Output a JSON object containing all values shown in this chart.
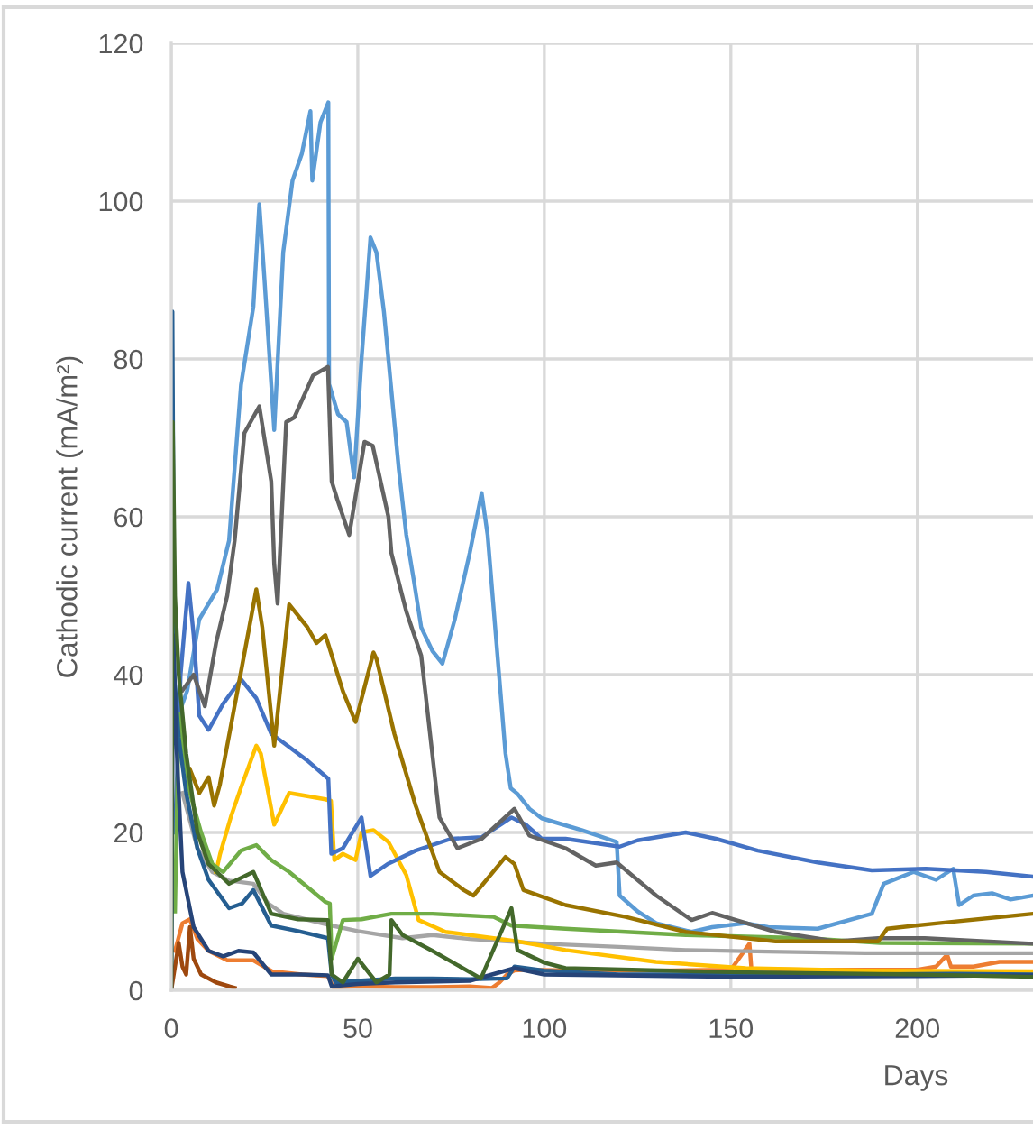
{
  "chart_data": {
    "type": "line",
    "xlabel": "Days",
    "ylabel": "Cathodic current (mA/m²)",
    "xlim": [
      0,
      231
    ],
    "ylim": [
      0,
      120
    ],
    "xticks": [
      0,
      50,
      100,
      150,
      200
    ],
    "yticks": [
      0,
      20,
      40,
      60,
      80,
      100,
      120
    ],
    "grid": true,
    "series": [
      {
        "color": "#5b9bd5",
        "x": [
          2,
          4.3,
          7.5,
          12.3,
          15.5,
          18.7,
          22,
          23.6,
          25,
          27.6,
          30,
          32.5,
          35,
          37.3,
          37.8,
          40,
          42.1,
          42.3,
          44.7,
          47,
          49,
          51,
          53.4,
          55,
          57,
          59,
          61,
          63,
          65,
          67,
          70,
          72.7,
          76,
          80,
          83.2,
          84.8,
          87,
          89.6,
          91,
          92.8,
          96,
          99.3,
          105,
          110,
          115,
          119.4,
          120.2,
          125,
          130,
          139.5,
          145,
          154,
          160,
          173.3,
          187.8,
          191,
          199,
          205,
          209.6,
          211.2,
          215,
          220,
          225,
          231
        ],
        "values": [
          35,
          38,
          47,
          50.8,
          57,
          76.7,
          86.6,
          99.6,
          90,
          71,
          93.5,
          102.6,
          106,
          111.4,
          102.6,
          110,
          112.5,
          76.8,
          73,
          72,
          65,
          80,
          95.4,
          93.5,
          86,
          76,
          66,
          57.7,
          52,
          46,
          43,
          41.4,
          47,
          55.4,
          63,
          57.7,
          45,
          30,
          25.6,
          24.9,
          23,
          21.8,
          21,
          20.3,
          19.5,
          18.8,
          12,
          10,
          8.5,
          7.4,
          8,
          8.5,
          8,
          7.8,
          9.7,
          13.5,
          15,
          14,
          15.4,
          10.8,
          12,
          12.3,
          11.5,
          12
        ]
      },
      {
        "color": "#ed7d31",
        "x": [
          1,
          3,
          5,
          7,
          10,
          15,
          22,
          27,
          35,
          42,
          43.5,
          50,
          60,
          70,
          80,
          86,
          88,
          90,
          92,
          95,
          110,
          130,
          150,
          155,
          155.5,
          156,
          170,
          190,
          200,
          205,
          208,
          209,
          215,
          222,
          231
        ],
        "values": [
          5,
          8.5,
          9,
          6.5,
          5,
          3.8,
          3.8,
          2.4,
          2,
          1.8,
          0.3,
          0.5,
          0.4,
          0.4,
          0.5,
          0.3,
          1,
          2,
          2.5,
          2.6,
          2.5,
          2.5,
          2.6,
          5.9,
          2.8,
          2.7,
          2.6,
          2.6,
          2.6,
          3,
          4.5,
          3,
          3,
          3.6,
          3.6
        ]
      },
      {
        "color": "#a5a5a5",
        "x": [
          3,
          7,
          11,
          15.5,
          22,
          26,
          30,
          36,
          43,
          50,
          62,
          70,
          80,
          90,
          100,
          120,
          137.9,
          160,
          186,
          210,
          231
        ],
        "values": [
          25,
          18,
          15,
          13.9,
          13.5,
          11,
          9.7,
          9,
          8.2,
          7.5,
          6.6,
          7,
          6.5,
          6.2,
          5.9,
          5.5,
          5.1,
          4.9,
          4.7,
          4.7,
          4.7
        ]
      },
      {
        "color": "#ffc000",
        "x": [
          12,
          13.1,
          16,
          18.7,
          22.8,
          24,
          27.6,
          31.6,
          36.5,
          41.3,
          42.8,
          43.7,
          46,
          49.4,
          51,
          54.2,
          58.2,
          63,
          66.3,
          73.5,
          86.4,
          92.8,
          105.7,
          129.9,
          154,
          186,
          231
        ],
        "values": [
          15,
          17.3,
          22,
          25.7,
          31,
          30,
          21,
          25,
          24.6,
          24.2,
          24,
          16.5,
          17.3,
          16.5,
          20,
          20.3,
          18.8,
          14.6,
          8.9,
          7.4,
          6.6,
          6.2,
          5.1,
          3.6,
          2.8,
          2.5,
          2.4
        ]
      },
      {
        "color": "#4472c4",
        "x": [
          1,
          2.5,
          4.6,
          6,
          7.5,
          10,
          13.9,
          18.7,
          22.8,
          26.8,
          30,
          36.5,
          42.1,
          42.9,
          46,
          51,
          53.4,
          58,
          65.5,
          75,
          83.2,
          91.2,
          95,
          99.3,
          105.7,
          120.2,
          125,
          137.9,
          146,
          157.2,
          173.3,
          187.8,
          202.3,
          218.4,
          231
        ],
        "values": [
          20,
          40,
          51.6,
          45,
          34.8,
          33,
          36.3,
          39.4,
          37,
          32.5,
          31.4,
          29.1,
          26.8,
          17.3,
          18,
          21.9,
          14.5,
          16,
          17.7,
          19.2,
          19.4,
          21.9,
          21,
          19.2,
          19.2,
          18.2,
          19,
          20,
          19.2,
          17.7,
          16.2,
          15.2,
          15.4,
          15,
          14.4
        ]
      },
      {
        "color": "#70ad47",
        "x": [
          1,
          2,
          5,
          8,
          11,
          13.9,
          18.7,
          22.8,
          26.8,
          31.6,
          41.3,
          42.5,
          43,
          46,
          51,
          59,
          70,
          86.4,
          91.2,
          105.7,
          137.9,
          170,
          190,
          231
        ],
        "values": [
          10,
          35,
          25,
          20,
          16,
          15,
          17.7,
          18.4,
          16.5,
          15,
          11.2,
          11,
          4,
          8.9,
          9,
          9.7,
          9.7,
          9.3,
          8.2,
          7.8,
          7,
          6.6,
          6,
          5.9
        ]
      },
      {
        "color": "#255e91",
        "x": [
          0,
          0.3,
          0.8,
          2,
          4,
          7,
          10,
          15.5,
          19,
          22,
          26.8,
          34,
          42,
          43,
          44,
          50,
          60,
          70,
          80,
          90,
          92,
          100,
          120,
          150,
          180,
          210,
          231
        ],
        "values": [
          0,
          86,
          40,
          32,
          25,
          18,
          14,
          10.4,
          11,
          12.7,
          8.2,
          7.5,
          6.6,
          2,
          1,
          1.2,
          1.5,
          1.5,
          1.4,
          1.5,
          3,
          2.5,
          2,
          2,
          2,
          2.1,
          2
        ]
      },
      {
        "color": "#9e480e",
        "x": [
          0,
          1,
          2,
          3,
          4,
          5,
          6,
          8,
          12,
          17
        ],
        "values": [
          0,
          3,
          6,
          3,
          2,
          8,
          4,
          2,
          1,
          0.3
        ]
      },
      {
        "color": "#636363",
        "x": [
          3,
          6,
          9,
          12,
          15,
          17,
          19.6,
          23.6,
          26.8,
          27.6,
          28.5,
          30.8,
          33,
          38,
          42,
          43,
          44.5,
          47.7,
          51.8,
          54,
          58.2,
          59,
          63,
          67,
          71.9,
          76.7,
          83.2,
          92,
          96,
          105.7,
          113.8,
          119.4,
          130,
          139.5,
          145,
          162,
          178,
          189.5,
          202,
          231
        ],
        "values": [
          38,
          40,
          36,
          44,
          50,
          57,
          70.6,
          74,
          64.5,
          54,
          49,
          72,
          72.6,
          77.9,
          79,
          64.5,
          62.2,
          57.7,
          69.5,
          69,
          60,
          55.4,
          48,
          42.4,
          21.9,
          18,
          19.2,
          23,
          19.6,
          18,
          15.8,
          16.2,
          12,
          8.9,
          9.8,
          7.4,
          6.2,
          6.6,
          6.6,
          5.9
        ]
      },
      {
        "color": "#997300",
        "x": [
          5,
          7.5,
          10,
          11.5,
          13,
          18,
          22.8,
          24.4,
          27.6,
          31.6,
          36.5,
          38.9,
          41.3,
          42,
          46,
          49.4,
          54.2,
          55,
          59.8,
          65.5,
          71.9,
          78.4,
          81,
          89.6,
          92,
          94.4,
          105.7,
          121.8,
          137.9,
          162,
          189.5,
          191.9,
          205.6,
          231
        ],
        "values": [
          28,
          25,
          27,
          23.4,
          26,
          38.6,
          50.8,
          46,
          31,
          48.9,
          46,
          44,
          45,
          44,
          37.9,
          34,
          42.8,
          42,
          32.5,
          23.4,
          15,
          12.7,
          12,
          16.9,
          16,
          12.7,
          10.8,
          9.3,
          7.4,
          6.2,
          6.2,
          7.8,
          8.5,
          9.7
        ]
      },
      {
        "color": "#264478",
        "x": [
          0,
          0.5,
          1.5,
          3,
          6,
          10,
          13.9,
          18,
          22,
          26.8,
          35,
          42,
          43,
          50,
          60,
          80,
          92,
          100,
          150,
          200,
          231
        ],
        "values": [
          0,
          45,
          30,
          15,
          8,
          5,
          4.3,
          5,
          4.8,
          2,
          2,
          1.9,
          0.5,
          0.8,
          1,
          1.2,
          2.8,
          2,
          1.7,
          1.8,
          1.9
        ]
      },
      {
        "color": "#43682b",
        "x": [
          0,
          0.4,
          1,
          2,
          4,
          7,
          10,
          15.5,
          22,
          26.8,
          34,
          42,
          43,
          46,
          50,
          55,
          58.5,
          59,
          62,
          70,
          83,
          91.2,
          92.8,
          100,
          105.7,
          150,
          200,
          231
        ],
        "values": [
          0,
          72,
          50,
          40,
          30,
          20,
          16,
          13.5,
          15,
          9.7,
          9,
          8.9,
          2,
          1,
          4,
          1,
          2,
          8.9,
          7,
          5,
          1.5,
          10.4,
          5.1,
          3.5,
          2.8,
          2.3,
          2,
          1.7
        ]
      }
    ]
  }
}
